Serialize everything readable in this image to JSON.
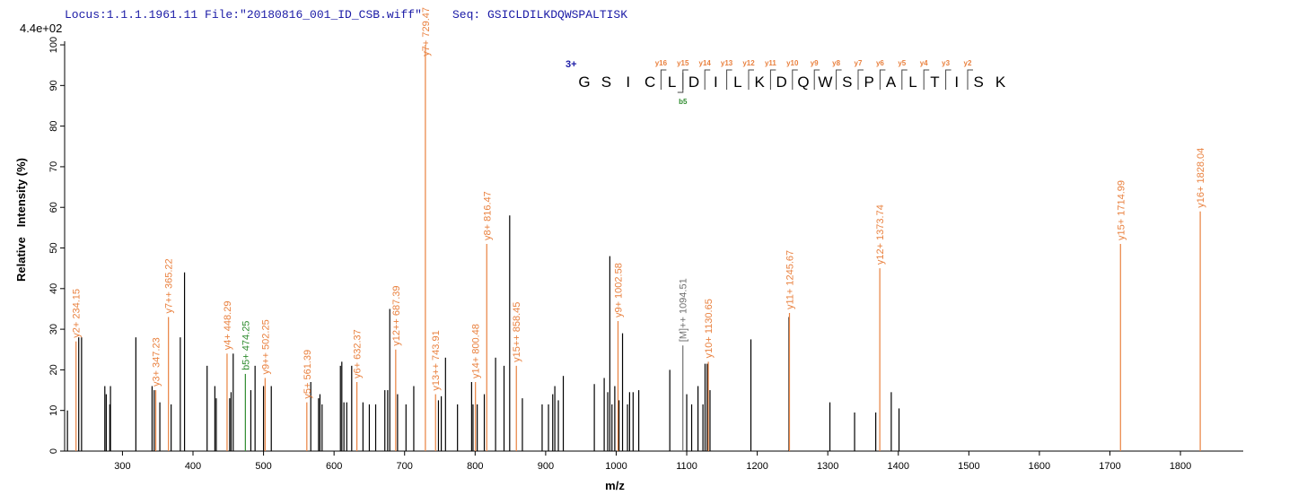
{
  "header": {
    "locus": "Locus:1.1.1.1961.11 File:\"20180816_001_ID_CSB.wiff\"",
    "seq": "Seq: GSICLDILKDQWSPALTISK"
  },
  "chart_data": {
    "type": "spectrum",
    "scale_label": "4.4e+02",
    "xlabel": "m/z",
    "ylabel": "Relative   Intensity (%)",
    "xlim": [
      218,
      1889
    ],
    "ylim": [
      0,
      101
    ],
    "xticks": [
      300,
      400,
      500,
      600,
      700,
      800,
      900,
      1000,
      1100,
      1200,
      1300,
      1400,
      1500,
      1600,
      1700,
      1800
    ],
    "yticks": [
      0,
      10,
      20,
      30,
      40,
      50,
      60,
      70,
      80,
      90,
      100
    ],
    "peaks": {
      "color": "#000000",
      "x": [
        222,
        238,
        242,
        275,
        277,
        282,
        283,
        319,
        342,
        345,
        353,
        369,
        382,
        388,
        420,
        431,
        433,
        452,
        454,
        457,
        482,
        488,
        500,
        511,
        567,
        578,
        580,
        583,
        609,
        611,
        614,
        618,
        625,
        641,
        650,
        659,
        672,
        676,
        679,
        690,
        702,
        713,
        748,
        752,
        758,
        775,
        795,
        797,
        803,
        813,
        829,
        841,
        849,
        867,
        895,
        904,
        910,
        913,
        918,
        925,
        969,
        983,
        988,
        991,
        994,
        998,
        1004,
        1009,
        1016,
        1019,
        1024,
        1032,
        1076,
        1100,
        1107,
        1116,
        1123,
        1126,
        1129,
        1133,
        1191,
        1245,
        1303,
        1338,
        1368,
        1390,
        1401
      ],
      "values": [
        10,
        28,
        28,
        16,
        14,
        11.5,
        16,
        28,
        16,
        15,
        12,
        11.5,
        28,
        44,
        21,
        16,
        13,
        13,
        14.5,
        24,
        15,
        21,
        16,
        16,
        17,
        13,
        14,
        11.5,
        21,
        22,
        12,
        12,
        21,
        12,
        11.5,
        11.5,
        15,
        15,
        35,
        14,
        11.5,
        16,
        12.5,
        13.5,
        23,
        11.5,
        17,
        11.5,
        11.5,
        14,
        23,
        21,
        58,
        13,
        11.5,
        11.5,
        14,
        16,
        12.5,
        18.5,
        16.5,
        18,
        14.5,
        48,
        11.5,
        16,
        12.5,
        29,
        11.5,
        14.5,
        14.5,
        15,
        20,
        14,
        11.5,
        16,
        11.5,
        21.5,
        21.5,
        15,
        27.5,
        33,
        12,
        9.5,
        9.5,
        14.5,
        10.5
      ]
    },
    "annotations": [
      {
        "label": "y2+ 234.15",
        "x": 234.15,
        "value": 27,
        "color": "#e9813f"
      },
      {
        "label": "y3+ 347.23",
        "x": 347.23,
        "value": 15,
        "color": "#e9813f"
      },
      {
        "label": "y7++ 365.22",
        "x": 365.22,
        "value": 33,
        "color": "#e9813f"
      },
      {
        "label": "y4+ 448.29",
        "x": 448.29,
        "value": 24,
        "color": "#e9813f"
      },
      {
        "label": "b5+ 474.25",
        "x": 474.25,
        "value": 19,
        "color": "#2e8b2e"
      },
      {
        "label": "y9++ 502.25",
        "x": 502.25,
        "value": 18,
        "color": "#e9813f"
      },
      {
        "label": "y5+ 561.39",
        "x": 561.39,
        "value": 12,
        "color": "#e9813f"
      },
      {
        "label": "y6+ 632.37",
        "x": 632.37,
        "value": 17,
        "color": "#e9813f"
      },
      {
        "label": "y12++ 687.39",
        "x": 687.39,
        "value": 25,
        "color": "#e9813f"
      },
      {
        "label": "y7+ 729.47",
        "x": 729.47,
        "value": 100,
        "color": "#e9813f"
      },
      {
        "label": "y13++ 743.91",
        "x": 743.91,
        "value": 14,
        "color": "#e9813f"
      },
      {
        "label": "y14+ 800.48",
        "x": 800.48,
        "value": 17,
        "color": "#e9813f"
      },
      {
        "label": "y8+ 816.47",
        "x": 816.47,
        "value": 51,
        "color": "#e9813f"
      },
      {
        "label": "y15++ 858.45",
        "x": 858.45,
        "value": 21,
        "color": "#e9813f"
      },
      {
        "label": "y9+ 1002.58",
        "x": 1002.58,
        "value": 32,
        "color": "#e9813f"
      },
      {
        "label": "[M]++ 1094.51",
        "x": 1094.51,
        "value": 26,
        "color": "#707070"
      },
      {
        "label": "y10+ 1130.65",
        "x": 1130.65,
        "value": 22,
        "color": "#e9813f"
      },
      {
        "label": "y11+ 1245.67",
        "x": 1245.67,
        "value": 34,
        "color": "#e9813f"
      },
      {
        "label": "y12+ 1373.74",
        "x": 1373.74,
        "value": 45,
        "color": "#e9813f"
      },
      {
        "label": "y15+ 1714.99",
        "x": 1714.99,
        "value": 51,
        "color": "#e9813f"
      },
      {
        "label": "y16+ 1828.04",
        "x": 1828.04,
        "value": 59,
        "color": "#e9813f"
      }
    ],
    "sequence": {
      "charge": "3+",
      "residues": [
        "G",
        "S",
        "I",
        "C",
        "L",
        "D",
        "I",
        "L",
        "K",
        "D",
        "Q",
        "W",
        "S",
        "P",
        "A",
        "L",
        "T",
        "I",
        "S",
        "K"
      ],
      "y_color": "#e9813f",
      "b_color": "#2e8b2e",
      "y_ions": [
        "y16",
        "y15",
        "y14",
        "y13",
        "y12",
        "y11",
        "y10",
        "y9",
        "y8",
        "y7",
        "y6",
        "y5",
        "y4",
        "y3",
        "y2"
      ],
      "b_ions": [
        "b5"
      ]
    }
  }
}
